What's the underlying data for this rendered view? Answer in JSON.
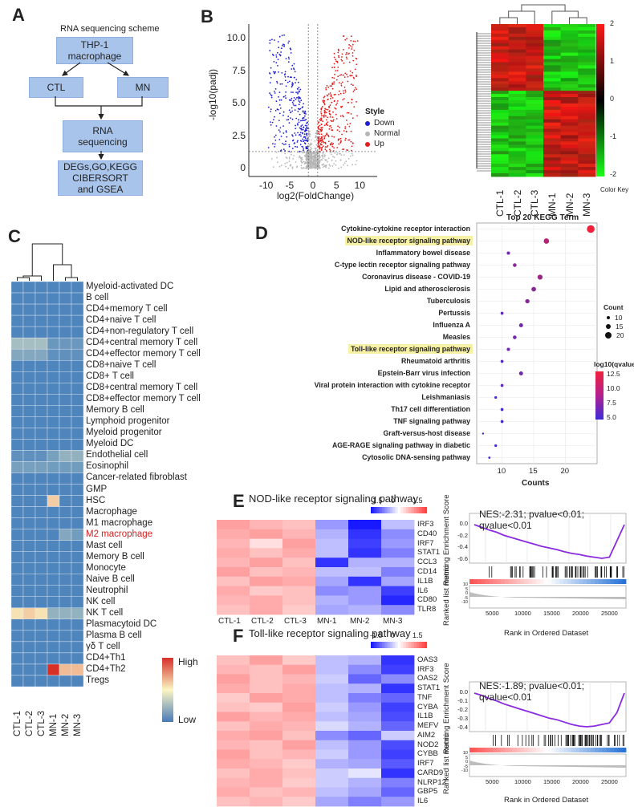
{
  "panelA": {
    "label": "A",
    "title": "RNA sequencing scheme",
    "box_thp1": "THP-1 macrophage",
    "box_ctl": "CTL",
    "box_mn": "MN",
    "box_rnaseq": "RNA sequencing",
    "box_analysis_1": "DEGs,GO,KEGG",
    "box_analysis_2": "CIBERSORT",
    "box_analysis_3": "and GSEA"
  },
  "panelB": {
    "label": "B",
    "ylabel": "-log10(padj)",
    "xlabel": "log2(FoldChange)",
    "yticks": [
      "10.0",
      "7.5",
      "5.0",
      "2.5",
      "0"
    ],
    "xticks": [
      "-10",
      "-5",
      "0",
      "5",
      "10"
    ],
    "legend_title": "Style",
    "legend_items": [
      {
        "label": "Down",
        "color": "#1f1fd1"
      },
      {
        "label": "Normal",
        "color": "#b5b5b5"
      },
      {
        "label": "Up",
        "color": "#e01f1f"
      }
    ],
    "heat_cols": [
      "CTL-1",
      "CTL-2",
      "CTL-3",
      "MN-1",
      "MN-2",
      "MN-3"
    ],
    "colorkey_title": "Color Key",
    "colorkey_ticks": [
      "2",
      "1",
      "0",
      "-1",
      "-2"
    ]
  },
  "panelC": {
    "label": "C",
    "cols": [
      "CTL-1",
      "CTL-2",
      "CTL-3",
      "MN-1",
      "MN-2",
      "MN-3"
    ],
    "rows": [
      "Myeloid-activated DC",
      "B cell",
      "CD4+memory T cell",
      "CD4+naive T cell",
      "CD4+non-regulatory T cell",
      "CD4+central memory T cell",
      "CD4+effector memory T cell",
      "CD8+naive T cell",
      "CD8+ T cell",
      "CD8+central memory T cell",
      "CD8+effector memory T cell",
      "Memory B cell",
      "Lymphoid progenitor",
      "Myeloid progenitor",
      "Myeloid DC",
      "Endothelial cell",
      "Eosinophil",
      "Cancer-related fibroblast",
      "GMP",
      "HSC",
      "Macrophage",
      "M1 macrophage",
      "M2 macrophage",
      "Mast cell",
      "Memory B cell",
      "Monocyte",
      "Naive B cell",
      "Neutrophil",
      "NK cell",
      "NK T cell",
      "Plasmacytoid DC",
      "Plasma B cell",
      "γδ T cell",
      "CD4+Th1",
      "CD4+Th2",
      "Tregs"
    ],
    "highlight_row": "M2 macrophage",
    "highlight_color": "#d42020",
    "legend_high": "High",
    "legend_low": "Low",
    "values": [
      [
        0,
        0,
        0,
        0,
        0,
        0
      ],
      [
        0,
        0,
        0,
        0,
        0,
        0
      ],
      [
        0,
        0,
        0,
        0,
        0,
        0
      ],
      [
        0,
        0,
        0,
        0,
        0,
        0
      ],
      [
        0,
        0,
        0,
        0,
        0,
        0
      ],
      [
        0.25,
        0.25,
        0.25,
        0.08,
        0.08,
        0.08
      ],
      [
        0.15,
        0.15,
        0.15,
        0.05,
        0.05,
        0.05
      ],
      [
        0,
        0,
        0,
        0,
        0,
        0
      ],
      [
        0,
        0,
        0,
        0,
        0,
        0
      ],
      [
        0,
        0,
        0,
        0,
        0,
        0
      ],
      [
        0,
        0,
        0,
        0,
        0,
        0
      ],
      [
        0,
        0,
        0,
        0,
        0,
        0
      ],
      [
        0,
        0,
        0,
        0,
        0,
        0
      ],
      [
        0,
        0,
        0,
        0,
        0,
        0
      ],
      [
        0,
        0,
        0,
        0,
        0,
        0
      ],
      [
        0.05,
        0.05,
        0.05,
        0.12,
        0.2,
        0.2
      ],
      [
        0.12,
        0.12,
        0.12,
        0.1,
        0.1,
        0.1
      ],
      [
        0,
        0,
        0,
        0,
        0,
        0
      ],
      [
        0,
        0,
        0,
        0,
        0,
        0
      ],
      [
        0,
        0,
        0,
        0.6,
        0,
        0
      ],
      [
        0,
        0,
        0,
        0,
        0,
        0
      ],
      [
        0,
        0,
        0,
        0,
        0,
        0
      ],
      [
        0,
        0,
        0,
        0,
        0.15,
        0.1
      ],
      [
        0,
        0,
        0,
        0,
        0,
        0
      ],
      [
        0,
        0,
        0,
        0,
        0,
        0
      ],
      [
        0,
        0,
        0,
        0,
        0,
        0
      ],
      [
        0,
        0,
        0,
        0,
        0,
        0
      ],
      [
        0,
        0,
        0,
        0,
        0,
        0
      ],
      [
        0,
        0,
        0,
        0,
        0,
        0
      ],
      [
        0.55,
        0.6,
        0.55,
        0.2,
        0.2,
        0.2
      ],
      [
        0,
        0,
        0,
        0,
        0,
        0
      ],
      [
        0,
        0,
        0,
        0,
        0,
        0
      ],
      [
        0,
        0,
        0,
        0,
        0,
        0
      ],
      [
        0,
        0,
        0,
        0,
        0,
        0
      ],
      [
        0,
        0,
        0,
        1.0,
        0.65,
        0.65
      ],
      [
        0,
        0,
        0,
        0,
        0,
        0
      ]
    ]
  },
  "chart_data": [
    {
      "type": "scatter",
      "title": "Top 20 KEGG Term",
      "xlabel": "Counts",
      "xlim": [
        6,
        25
      ],
      "xticks": [
        "10",
        "15",
        "20"
      ],
      "size_legend_title": "Count",
      "size_legend": [
        "10",
        "15",
        "20"
      ],
      "color_legend_title": "log10(qvalue)",
      "color_legend": [
        "12.5",
        "10.0",
        "7.5",
        "5.0"
      ],
      "highlight_terms": [
        "NOD-like receptor signaling pathway",
        "Toll-like receptor signaling pathway"
      ],
      "terms": [
        "Cytokine-cytokine receptor interaction",
        "NOD-like receptor signaling pathway",
        "Inflammatory bowel disease",
        "C-type lectin receptor signaling pathway",
        "Coronavirus disease - COVID-19",
        "Lipid and atherosclerosis",
        "Tuberculosis",
        "Pertussis",
        "Influenza A",
        "Measles",
        "Toll-like receptor signaling pathway",
        "Rheumatoid arthritis",
        "Epstein-Barr virus infection",
        "Viral protein interaction with cytokine  receptor",
        "Leishmaniasis",
        "Th17 cell differentiation",
        "TNF signaling pathway",
        "Graft-versus-host disease",
        "AGE-RAGE signaling pathway in diabetic",
        "Cytosolic DNA-sensing pathway"
      ],
      "counts": [
        24,
        17,
        11,
        12,
        16,
        15,
        14,
        10,
        13,
        12,
        11,
        10,
        13,
        10,
        9,
        10,
        10,
        7,
        9,
        8
      ],
      "qvalue": [
        13,
        10,
        7,
        8,
        9,
        8,
        8,
        6,
        7,
        7,
        7,
        5.5,
        7,
        6,
        5,
        5,
        5,
        4.5,
        5,
        5
      ]
    },
    {
      "type": "heatmap",
      "title": "NOD-like receptor signaling pathway",
      "cols": [
        "CTL-1",
        "CTL-2",
        "CTL-3",
        "MN-1",
        "MN-2",
        "MN-3"
      ],
      "rows": [
        "IRF3",
        "CD40",
        "IRF7",
        "STAT1",
        "CCL3",
        "CD14",
        "IL1B",
        "IL6",
        "CD80",
        "TLR8"
      ],
      "scale_ticks": [
        "-1.5",
        "0",
        "1.5"
      ],
      "values": [
        [
          0.9,
          0.7,
          0.6,
          -0.8,
          -1.8,
          -0.5
        ],
        [
          0.8,
          0.9,
          0.7,
          -0.6,
          -1.6,
          -0.9
        ],
        [
          0.7,
          0.3,
          0.9,
          -0.5,
          -1.5,
          -0.8
        ],
        [
          0.8,
          0.6,
          0.8,
          -0.5,
          -1.6,
          -1.0
        ],
        [
          0.7,
          0.9,
          0.6,
          -1.6,
          -0.6,
          -0.6
        ],
        [
          0.9,
          0.6,
          0.7,
          -0.5,
          -0.5,
          -1.0
        ],
        [
          0.6,
          0.9,
          0.8,
          -0.7,
          -1.6,
          -0.7
        ],
        [
          0.8,
          0.5,
          0.6,
          -0.9,
          -0.8,
          -1.5
        ],
        [
          0.7,
          0.8,
          0.6,
          -0.6,
          -0.8,
          -1.7
        ],
        [
          0.6,
          0.8,
          0.5,
          -0.7,
          -0.6,
          -0.9
        ]
      ],
      "gsea_title": "NES:-2.31; pvalue<0.01; qvalue<0.01",
      "gsea_ylabel": "Running Enrichment Score",
      "gsea_ylabel2": "Ranked list metric",
      "gsea_xlabel": "Rank in Ordered Dataset",
      "gsea_yticks": [
        "0.0",
        "-0.2",
        "-0.4",
        "-0.6"
      ],
      "gsea_yticks2": [
        "10",
        "5",
        "0",
        "-5",
        "-10"
      ],
      "gsea_xticks": [
        "5000",
        "10000",
        "15000",
        "20000",
        "25000"
      ],
      "gsea_curve": [
        0,
        -0.05,
        -0.1,
        -0.14,
        -0.2,
        -0.24,
        -0.28,
        -0.32,
        -0.36,
        -0.4,
        -0.43,
        -0.46,
        -0.5,
        -0.53,
        -0.55,
        -0.58,
        -0.6,
        -0.62,
        -0.6,
        -0.3,
        0
      ]
    },
    {
      "type": "heatmap",
      "title": "Toll-like receptor signaling pathway",
      "cols": [
        "CTL-1",
        "CTL-2",
        "CTL-3",
        "MN-1",
        "MN-2",
        "MN-3"
      ],
      "rows": [
        "OAS3",
        "IRF3",
        "OAS2",
        "STAT1",
        "TNF",
        "CYBA",
        "IL1B",
        "MEFV",
        "AIM2",
        "NOD2",
        "CYBB",
        "IRF7",
        "CARD9",
        "NLRP12",
        "GBP5",
        "IL6"
      ],
      "scale_ticks": [
        "-1.5",
        "0",
        "1.5"
      ],
      "values": [
        [
          0.6,
          0.9,
          0.5,
          -0.5,
          -0.6,
          -1.6
        ],
        [
          0.7,
          0.6,
          0.9,
          -0.5,
          -0.9,
          -1.5
        ],
        [
          0.9,
          0.6,
          0.7,
          -0.4,
          -1.2,
          -0.9
        ],
        [
          0.8,
          0.6,
          0.8,
          -0.5,
          -0.6,
          -1.6
        ],
        [
          0.5,
          0.9,
          0.8,
          -0.5,
          -1.0,
          -1.2
        ],
        [
          0.6,
          0.5,
          0.9,
          -0.4,
          -0.8,
          -1.5
        ],
        [
          0.9,
          0.7,
          0.8,
          -0.5,
          -0.7,
          -1.4
        ],
        [
          0.6,
          0.8,
          0.7,
          -0.3,
          -0.6,
          -1.2
        ],
        [
          0.8,
          0.9,
          0.6,
          -0.9,
          -1.2,
          -0.4
        ],
        [
          0.7,
          0.6,
          0.9,
          -0.5,
          -0.8,
          -1.4
        ],
        [
          0.9,
          0.6,
          0.7,
          -0.4,
          -0.8,
          -1.5
        ],
        [
          0.8,
          0.7,
          0.5,
          -0.6,
          -0.7,
          -1.3
        ],
        [
          0.6,
          0.8,
          0.6,
          -0.4,
          -0.2,
          -1.6
        ],
        [
          0.7,
          0.8,
          0.5,
          -0.4,
          -0.6,
          -1.0
        ],
        [
          0.8,
          0.6,
          0.7,
          -0.5,
          -0.7,
          -1.2
        ],
        [
          0.6,
          0.7,
          0.5,
          -0.7,
          -1.0,
          -0.8
        ]
      ],
      "gsea_title": "NES:-1.89; pvalue<0.01; qvalue<0.01",
      "gsea_ylabel": "Running Enrichment Score",
      "gsea_ylabel2": "Ranked list metric",
      "gsea_xlabel": "Rank in Ordered Dataset",
      "gsea_yticks": [
        "0.0",
        "-0.1",
        "-0.2",
        "-0.3",
        "-0.4"
      ],
      "gsea_yticks2": [
        "10",
        "5",
        "0",
        "-5",
        "-10"
      ],
      "gsea_xticks": [
        "5000",
        "10000",
        "15000",
        "20000",
        "25000"
      ],
      "gsea_curve": [
        0,
        -0.03,
        -0.07,
        -0.1,
        -0.14,
        -0.17,
        -0.2,
        -0.23,
        -0.26,
        -0.29,
        -0.32,
        -0.34,
        -0.37,
        -0.4,
        -0.42,
        -0.43,
        -0.42,
        -0.4,
        -0.38,
        -0.25,
        0
      ]
    }
  ],
  "panelD": {
    "label": "D"
  },
  "panelE": {
    "label": "E"
  },
  "panelF": {
    "label": "F"
  }
}
